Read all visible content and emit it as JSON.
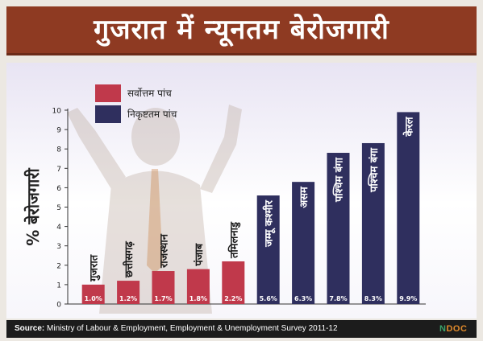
{
  "title": "गुजरात में न्यूनतम बेरोजगारी",
  "legend": [
    {
      "label": "सर्वोत्तम पांच",
      "color": "#c0394b"
    },
    {
      "label": "निकृष्टतम पांच",
      "color": "#2f2f5e"
    }
  ],
  "chart_data": {
    "type": "bar",
    "ylabel": "% बेरोजगारी",
    "ylim": [
      0,
      10
    ],
    "yticks": [
      0,
      1,
      2,
      3,
      4,
      5,
      6,
      7,
      8,
      9,
      10
    ],
    "categories": [
      "गुजरात",
      "छत्तीसगढ़",
      "राजस्थान",
      "पंजाब",
      "तमिलनाडु",
      "जम्मू कश्मीर",
      "असम",
      "पश्चिम बंगा",
      "पश्चिम बंगा",
      "केरल"
    ],
    "values": [
      1.0,
      1.2,
      1.7,
      1.8,
      2.2,
      5.6,
      6.3,
      7.8,
      8.3,
      9.9
    ],
    "data_labels": [
      "1.0%",
      "1.2%",
      "1.7%",
      "1.8%",
      "2.2%",
      "5.6%",
      "6.3%",
      "7.8%",
      "8.3%",
      "9.9%"
    ],
    "groups": [
      "best",
      "best",
      "best",
      "best",
      "best",
      "worst",
      "worst",
      "worst",
      "worst",
      "worst"
    ],
    "colors": {
      "best": "#c0394b",
      "worst": "#2f2f5e"
    },
    "legend_placement": "top-left",
    "grid": false
  },
  "footer": {
    "source_label": "Source:",
    "source_text": "Ministry of Labour & Employment, Employment & Unemployment Survey 2011-12",
    "logo_n": "N",
    "logo_rest": "DOC"
  }
}
